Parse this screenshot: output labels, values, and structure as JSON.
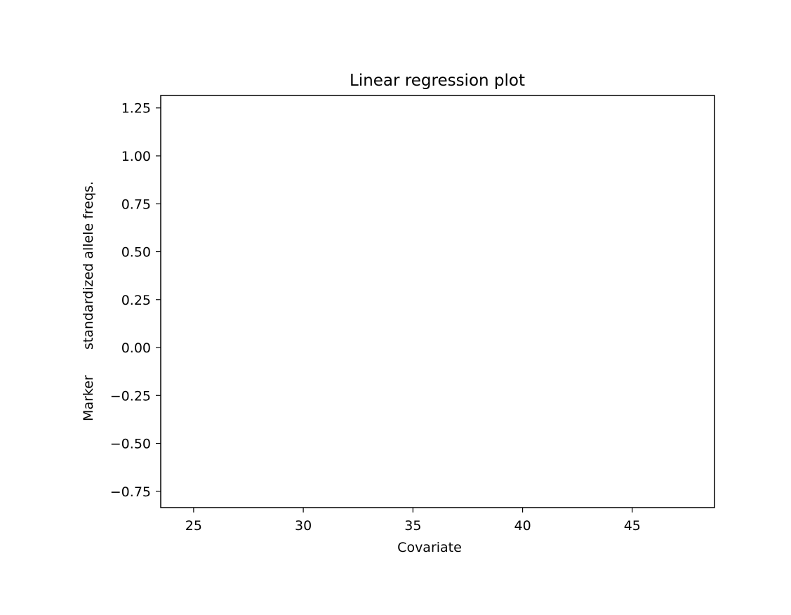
{
  "chart_data": {
    "type": "line",
    "title": "Linear regression plot",
    "xlabel": "Covariate",
    "ylabel": "Marker      standardized allele freqs.",
    "xlim": [
      23.5,
      48.75
    ],
    "ylim": [
      -0.835,
      1.315
    ],
    "xticks": [
      {
        "value": 25,
        "label": "25"
      },
      {
        "value": 30,
        "label": "30"
      },
      {
        "value": 35,
        "label": "35"
      },
      {
        "value": 40,
        "label": "40"
      },
      {
        "value": 45,
        "label": "45"
      }
    ],
    "yticks": [
      {
        "value": 1.25,
        "label": "1.25"
      },
      {
        "value": 1.0,
        "label": "1.00"
      },
      {
        "value": 0.75,
        "label": "0.75"
      },
      {
        "value": 0.5,
        "label": "0.50"
      },
      {
        "value": 0.25,
        "label": "0.25"
      },
      {
        "value": 0.0,
        "label": "0.00"
      },
      {
        "value": -0.25,
        "label": "−0.25"
      },
      {
        "value": -0.5,
        "label": "−0.50"
      },
      {
        "value": -0.75,
        "label": "−0.75"
      }
    ],
    "series": [],
    "grid": false,
    "colors": {
      "axes": "#000000",
      "background": "#ffffff"
    }
  }
}
